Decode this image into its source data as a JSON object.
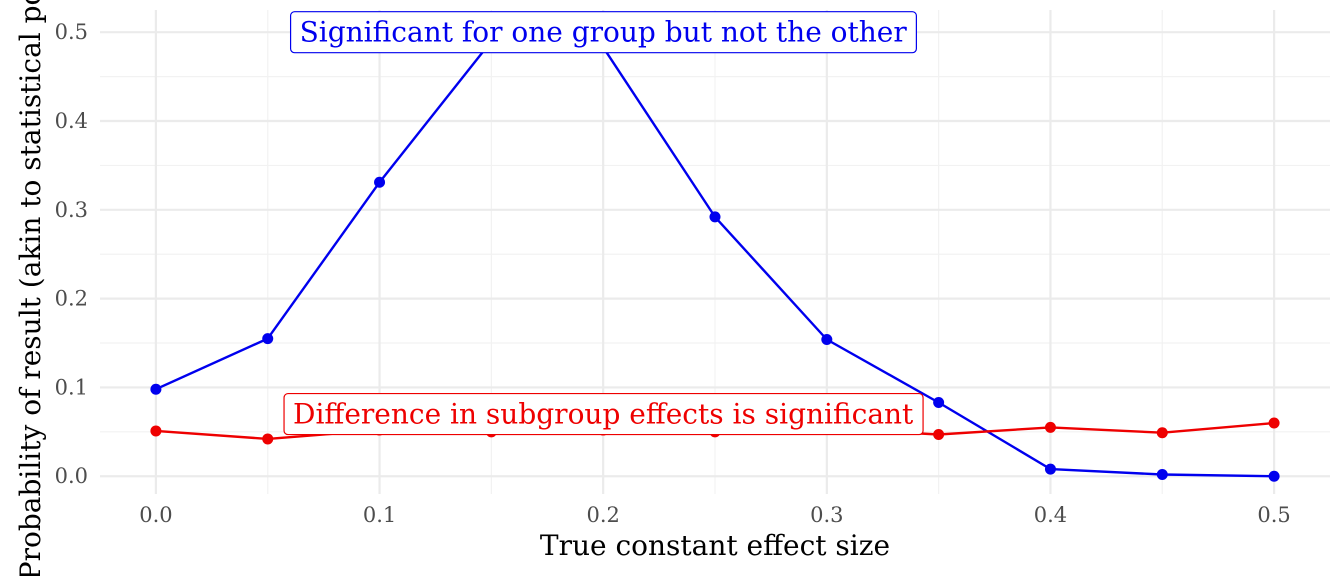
{
  "chart_data": {
    "type": "line",
    "xlabel": "True constant effect size",
    "ylabel": "Probability of result (akin to statistical power)",
    "xlim": [
      -0.025,
      0.525
    ],
    "ylim": [
      -0.02,
      0.525
    ],
    "xticks": [
      "0.0",
      "0.1",
      "0.2",
      "0.3",
      "0.4",
      "0.5"
    ],
    "yticks": [
      "0.0",
      "0.1",
      "0.2",
      "0.3",
      "0.4",
      "0.5"
    ],
    "grid": true,
    "x": [
      0.0,
      0.05,
      0.1,
      0.15,
      0.2,
      0.25,
      0.3,
      0.35,
      0.4,
      0.45,
      0.5
    ],
    "series": [
      {
        "color": "#0000ee",
        "values": [
          0.098,
          0.155,
          0.331,
          0.49,
          0.483,
          0.292,
          0.154,
          0.083,
          0.008,
          0.002,
          0.0
        ]
      },
      {
        "color": "#ee0000",
        "values": [
          0.051,
          0.042,
          0.052,
          0.05,
          0.052,
          0.05,
          0.054,
          0.047,
          0.055,
          0.049,
          0.06
        ]
      }
    ],
    "annotations": [
      {
        "text": "Significant for one group but not the other",
        "x": 0.2,
        "y": 0.5,
        "color": "#0000ee"
      },
      {
        "text": "Difference in subgroup effects is significant",
        "x": 0.2,
        "y": 0.07,
        "color": "#ee0000"
      }
    ]
  }
}
